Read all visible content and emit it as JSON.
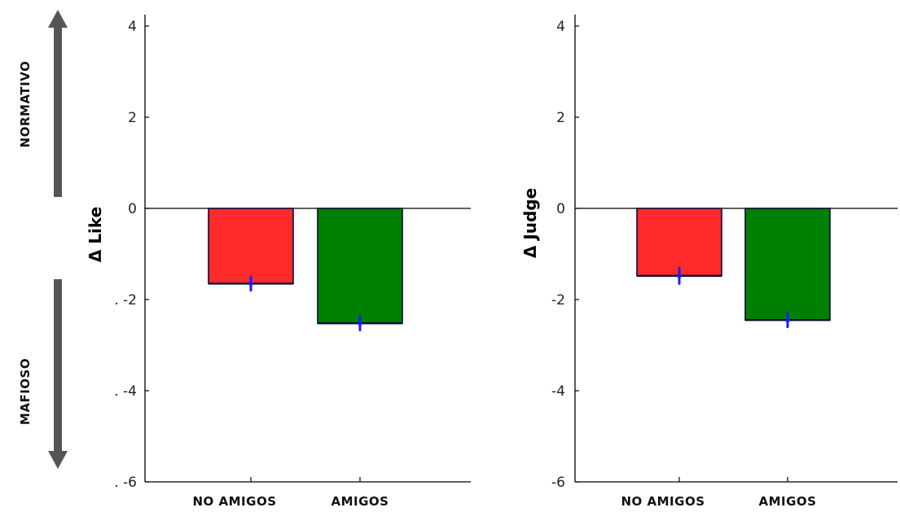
{
  "side_labels": {
    "top": "NORMATIVO",
    "bottom": "MAFIOSO"
  },
  "colors": {
    "no_amigos": "#ff2a2a",
    "amigos": "#008000",
    "error_bar": "#1a1aff",
    "bar_edge": "#0a0a3a",
    "arrow": "#555555"
  },
  "chart_data": [
    {
      "type": "bar",
      "ylabel": "Δ Like",
      "categories": [
        "NO AMIGOS",
        "AMIGOS"
      ],
      "values": [
        -1.65,
        -2.52
      ],
      "errors": [
        0.15,
        0.15
      ],
      "colors": [
        "#ff2a2a",
        "#008000"
      ],
      "ylim": [
        -6,
        4
      ],
      "yticks": [
        {
          "value": 4,
          "label": "4"
        },
        {
          "value": 2,
          "label": "2"
        },
        {
          "value": 0,
          "label": "0"
        },
        {
          "value": -2,
          "label": ". -2"
        },
        {
          "value": -4,
          "label": ". -4"
        },
        {
          "value": -6,
          "label": ". -6"
        }
      ],
      "grid": false
    },
    {
      "type": "bar",
      "ylabel": "Δ Judge",
      "categories": [
        "NO AMIGOS",
        "AMIGOS"
      ],
      "values": [
        -1.48,
        -2.45
      ],
      "errors": [
        0.17,
        0.15
      ],
      "colors": [
        "#ff2a2a",
        "#008000"
      ],
      "ylim": [
        -6,
        4
      ],
      "yticks": [
        {
          "value": 4,
          "label": "4"
        },
        {
          "value": 2,
          "label": "2"
        },
        {
          "value": 0,
          "label": "0"
        },
        {
          "value": -2,
          "label": "-2"
        },
        {
          "value": -4,
          "label": "-4"
        },
        {
          "value": -6,
          "label": "-6"
        }
      ],
      "grid": false
    }
  ]
}
